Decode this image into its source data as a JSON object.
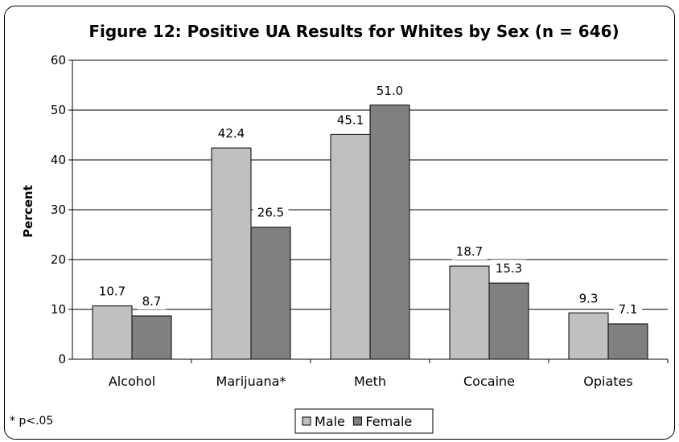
{
  "chart_data": {
    "type": "bar",
    "title": "Figure 12: Positive UA Results for Whites by Sex (n = 646)",
    "xlabel": "",
    "ylabel": "Percent",
    "ylim": [
      0,
      60
    ],
    "yticks": [
      0,
      10,
      20,
      30,
      40,
      50,
      60
    ],
    "categories": [
      "Alcohol",
      "Marijuana*",
      "Meth",
      "Cocaine",
      "Opiates"
    ],
    "series": [
      {
        "name": "Male",
        "color": "#c0c0c0",
        "values": [
          10.7,
          42.4,
          45.1,
          18.7,
          9.3
        ],
        "labels": [
          "10.7",
          "42.4",
          "45.1",
          "18.7",
          "9.3"
        ]
      },
      {
        "name": "Female",
        "color": "#808080",
        "values": [
          8.7,
          26.5,
          51.0,
          15.3,
          7.1
        ],
        "labels": [
          "8.7",
          "26.5",
          "51.0",
          "15.3",
          "7.1"
        ]
      }
    ],
    "grid": true,
    "legend_position": "bottom",
    "footnote": "* p<.05"
  }
}
